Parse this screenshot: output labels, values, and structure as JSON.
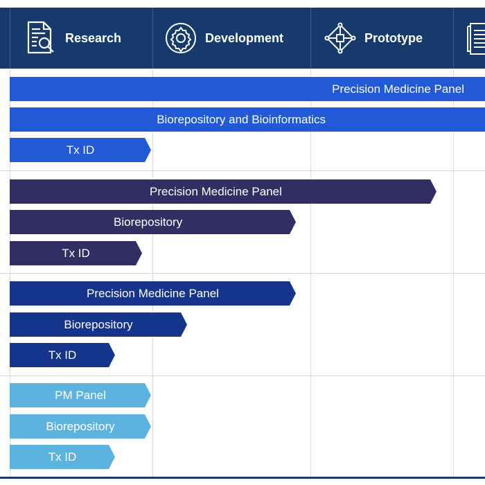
{
  "header": {
    "phases": [
      {
        "label": "Research",
        "icon": "document-magnifier-icon"
      },
      {
        "label": "Development",
        "icon": "gear-icon"
      },
      {
        "label": "Prototype",
        "icon": "network-diamond-icon"
      },
      {
        "label": "",
        "icon": "document-list-icon"
      }
    ]
  },
  "groups": [
    {
      "color": "#2159d6",
      "bars": [
        {
          "label": "Precision Medicine Panel"
        },
        {
          "label": "Biorepository and Bioinformatics"
        },
        {
          "label": "Tx ID"
        }
      ]
    },
    {
      "color": "#302e62",
      "bars": [
        {
          "label": "Precision Medicine Panel"
        },
        {
          "label": "Biorepository"
        },
        {
          "label": "Tx ID"
        }
      ]
    },
    {
      "color": "#15358c",
      "bars": [
        {
          "label": "Precision Medicine Panel"
        },
        {
          "label": "Biorepository"
        },
        {
          "label": "Tx ID"
        }
      ]
    },
    {
      "color": "#5cb3e0",
      "bars": [
        {
          "label": "PM Panel"
        },
        {
          "label": "Biorepository"
        },
        {
          "label": "Tx ID"
        }
      ]
    }
  ]
}
